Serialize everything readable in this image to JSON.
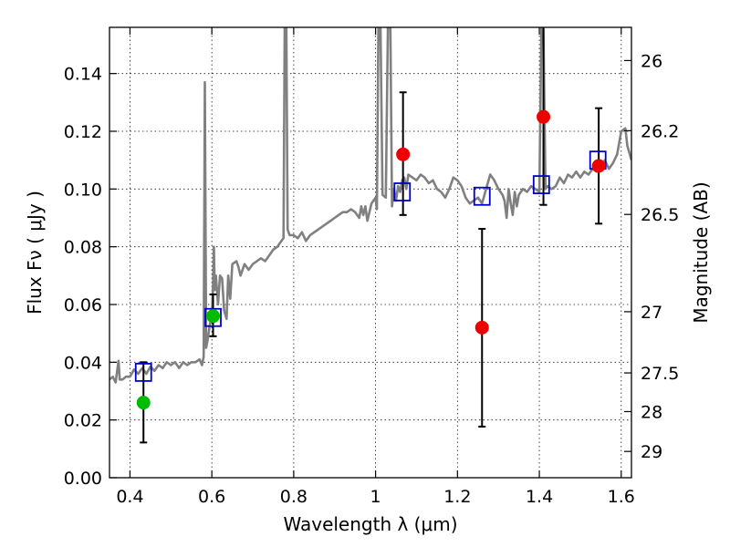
{
  "chart_data": {
    "type": "scatter",
    "xlabel": "Wavelength  λ (μm)",
    "ylabel": "Flux  Fν  ( μJy )",
    "ylabel_right": "Magnitude (AB)",
    "xlim": [
      0.35,
      1.625
    ],
    "ylim": [
      0.0,
      0.156
    ],
    "x_ticks": [
      0.4,
      0.6,
      0.8,
      1.0,
      1.2,
      1.4,
      1.6
    ],
    "x_tick_labels": [
      "0.4",
      "0.6",
      "0.8",
      "1",
      "1.2",
      "1.4",
      "1.6"
    ],
    "y_ticks": [
      0.0,
      0.02,
      0.04,
      0.06,
      0.08,
      0.1,
      0.12,
      0.14
    ],
    "y_tick_labels": [
      "0.00",
      "0.02",
      "0.04",
      "0.06",
      "0.08",
      "0.10",
      "0.12",
      "0.14"
    ],
    "right_ticks": [
      {
        "label": "26",
        "flux": 0.1445
      },
      {
        "label": "26.2",
        "flux": 0.1202
      },
      {
        "label": "26.5",
        "flux": 0.0912
      },
      {
        "label": "27",
        "flux": 0.0575
      },
      {
        "label": "27.5",
        "flux": 0.0363
      },
      {
        "label": "28",
        "flux": 0.0229
      },
      {
        "label": "29",
        "flux": 0.0091
      }
    ],
    "grid": true,
    "spectrum": {
      "color": "#808080",
      "points": [
        [
          0.35,
          0.034
        ],
        [
          0.358,
          0.035
        ],
        [
          0.365,
          0.033
        ],
        [
          0.372,
          0.0405
        ],
        [
          0.375,
          0.034
        ],
        [
          0.382,
          0.034
        ],
        [
          0.39,
          0.035
        ],
        [
          0.4,
          0.035
        ],
        [
          0.41,
          0.0375
        ],
        [
          0.42,
          0.036
        ],
        [
          0.43,
          0.038
        ],
        [
          0.44,
          0.036
        ],
        [
          0.45,
          0.0385
        ],
        [
          0.46,
          0.037
        ],
        [
          0.47,
          0.039
        ],
        [
          0.48,
          0.038
        ],
        [
          0.49,
          0.04
        ],
        [
          0.5,
          0.039
        ],
        [
          0.51,
          0.04
        ],
        [
          0.52,
          0.038
        ],
        [
          0.53,
          0.04
        ],
        [
          0.54,
          0.039
        ],
        [
          0.55,
          0.04
        ],
        [
          0.56,
          0.04
        ],
        [
          0.57,
          0.041
        ],
        [
          0.576,
          0.039
        ],
        [
          0.58,
          0.042
        ],
        [
          0.583,
          0.137
        ],
        [
          0.586,
          0.045
        ],
        [
          0.59,
          0.048
        ],
        [
          0.595,
          0.053
        ],
        [
          0.6,
          0.056
        ],
        [
          0.603,
          0.067
        ],
        [
          0.605,
          0.08
        ],
        [
          0.607,
          0.065
        ],
        [
          0.61,
          0.07
        ],
        [
          0.615,
          0.06
        ],
        [
          0.62,
          0.07
        ],
        [
          0.625,
          0.069
        ],
        [
          0.63,
          0.058
        ],
        [
          0.636,
          0.055
        ],
        [
          0.64,
          0.07
        ],
        [
          0.645,
          0.062
        ],
        [
          0.65,
          0.074
        ],
        [
          0.66,
          0.075
        ],
        [
          0.665,
          0.073
        ],
        [
          0.67,
          0.07
        ],
        [
          0.68,
          0.074
        ],
        [
          0.69,
          0.072
        ],
        [
          0.7,
          0.074
        ],
        [
          0.71,
          0.075
        ],
        [
          0.72,
          0.076
        ],
        [
          0.73,
          0.075
        ],
        [
          0.74,
          0.077
        ],
        [
          0.75,
          0.079
        ],
        [
          0.76,
          0.08
        ],
        [
          0.77,
          0.082
        ],
        [
          0.775,
          0.083
        ],
        [
          0.778,
          0.156
        ],
        [
          0.782,
          0.156
        ],
        [
          0.785,
          0.086
        ],
        [
          0.79,
          0.084
        ],
        [
          0.8,
          0.084
        ],
        [
          0.81,
          0.083
        ],
        [
          0.82,
          0.085
        ],
        [
          0.83,
          0.082
        ],
        [
          0.84,
          0.084
        ],
        [
          0.85,
          0.085
        ],
        [
          0.86,
          0.086
        ],
        [
          0.87,
          0.087
        ],
        [
          0.88,
          0.088
        ],
        [
          0.89,
          0.089
        ],
        [
          0.9,
          0.09
        ],
        [
          0.91,
          0.091
        ],
        [
          0.92,
          0.092
        ],
        [
          0.93,
          0.092
        ],
        [
          0.94,
          0.093
        ],
        [
          0.95,
          0.092
        ],
        [
          0.96,
          0.09
        ],
        [
          0.965,
          0.094
        ],
        [
          0.97,
          0.091
        ],
        [
          0.975,
          0.094
        ],
        [
          0.98,
          0.089
        ],
        [
          0.99,
          0.095
        ],
        [
          1.0,
          0.097
        ],
        [
          1.003,
          0.093
        ],
        [
          1.007,
          0.156
        ],
        [
          1.012,
          0.156
        ],
        [
          1.017,
          0.098
        ],
        [
          1.025,
          0.097
        ],
        [
          1.03,
          0.156
        ],
        [
          1.036,
          0.156
        ],
        [
          1.04,
          0.094
        ],
        [
          1.045,
          0.1
        ],
        [
          1.05,
          0.096
        ],
        [
          1.055,
          0.101
        ],
        [
          1.06,
          0.099
        ],
        [
          1.065,
          0.103
        ],
        [
          1.07,
          0.104
        ],
        [
          1.075,
          0.1
        ],
        [
          1.08,
          0.105
        ],
        [
          1.09,
          0.104
        ],
        [
          1.1,
          0.103
        ],
        [
          1.11,
          0.105
        ],
        [
          1.12,
          0.104
        ],
        [
          1.13,
          0.102
        ],
        [
          1.14,
          0.103
        ],
        [
          1.15,
          0.1
        ],
        [
          1.16,
          0.099
        ],
        [
          1.17,
          0.097
        ],
        [
          1.18,
          0.1
        ],
        [
          1.19,
          0.104
        ],
        [
          1.2,
          0.103
        ],
        [
          1.21,
          0.101
        ],
        [
          1.22,
          0.097
        ],
        [
          1.23,
          0.095
        ],
        [
          1.24,
          0.096
        ],
        [
          1.25,
          0.097
        ],
        [
          1.26,
          0.095
        ],
        [
          1.27,
          0.1
        ],
        [
          1.28,
          0.105
        ],
        [
          1.29,
          0.103
        ],
        [
          1.3,
          0.1
        ],
        [
          1.31,
          0.098
        ],
        [
          1.315,
          0.096
        ],
        [
          1.32,
          0.09
        ],
        [
          1.325,
          0.1
        ],
        [
          1.33,
          0.095
        ],
        [
          1.335,
          0.091
        ],
        [
          1.34,
          0.099
        ],
        [
          1.345,
          0.094
        ],
        [
          1.35,
          0.098
        ],
        [
          1.36,
          0.1
        ],
        [
          1.37,
          0.099
        ],
        [
          1.38,
          0.101
        ],
        [
          1.39,
          0.1
        ],
        [
          1.4,
          0.099
        ],
        [
          1.405,
          0.156
        ],
        [
          1.41,
          0.156
        ],
        [
          1.415,
          0.1
        ],
        [
          1.42,
          0.101
        ],
        [
          1.43,
          0.1
        ],
        [
          1.44,
          0.101
        ],
        [
          1.45,
          0.104
        ],
        [
          1.46,
          0.102
        ],
        [
          1.47,
          0.105
        ],
        [
          1.48,
          0.104
        ],
        [
          1.49,
          0.106
        ],
        [
          1.5,
          0.104
        ],
        [
          1.51,
          0.106
        ],
        [
          1.52,
          0.105
        ],
        [
          1.53,
          0.107
        ],
        [
          1.54,
          0.106
        ],
        [
          1.55,
          0.108
        ],
        [
          1.56,
          0.11
        ],
        [
          1.57,
          0.107
        ],
        [
          1.58,
          0.109
        ],
        [
          1.59,
          0.112
        ],
        [
          1.6,
          0.12
        ],
        [
          1.61,
          0.121
        ],
        [
          1.615,
          0.115
        ],
        [
          1.625,
          0.11
        ]
      ]
    },
    "model_points": {
      "color": "#0000cc",
      "points": [
        [
          0.433,
          0.0365
        ],
        [
          0.603,
          0.0555
        ],
        [
          1.065,
          0.099
        ],
        [
          1.26,
          0.0975
        ],
        [
          1.405,
          0.1015
        ],
        [
          1.543,
          0.11
        ]
      ]
    },
    "observed_points": [
      {
        "x": 0.433,
        "y": 0.026,
        "err_low": 0.0122,
        "err_high": 0.04,
        "color": "#00bb00"
      },
      {
        "x": 0.603,
        "y": 0.056,
        "err_low": 0.049,
        "err_high": 0.0635,
        "color": "#00bb00"
      },
      {
        "x": 1.067,
        "y": 0.112,
        "err_low": 0.091,
        "err_high": 0.1335,
        "color": "#ee0000"
      },
      {
        "x": 1.26,
        "y": 0.052,
        "err_low": 0.0177,
        "err_high": 0.0862,
        "color": "#ee0000"
      },
      {
        "x": 1.41,
        "y": 0.125,
        "err_low": 0.0945,
        "err_high": 0.156,
        "color": "#ee0000"
      },
      {
        "x": 1.545,
        "y": 0.108,
        "err_low": 0.088,
        "err_high": 0.128,
        "color": "#ee0000"
      }
    ]
  }
}
